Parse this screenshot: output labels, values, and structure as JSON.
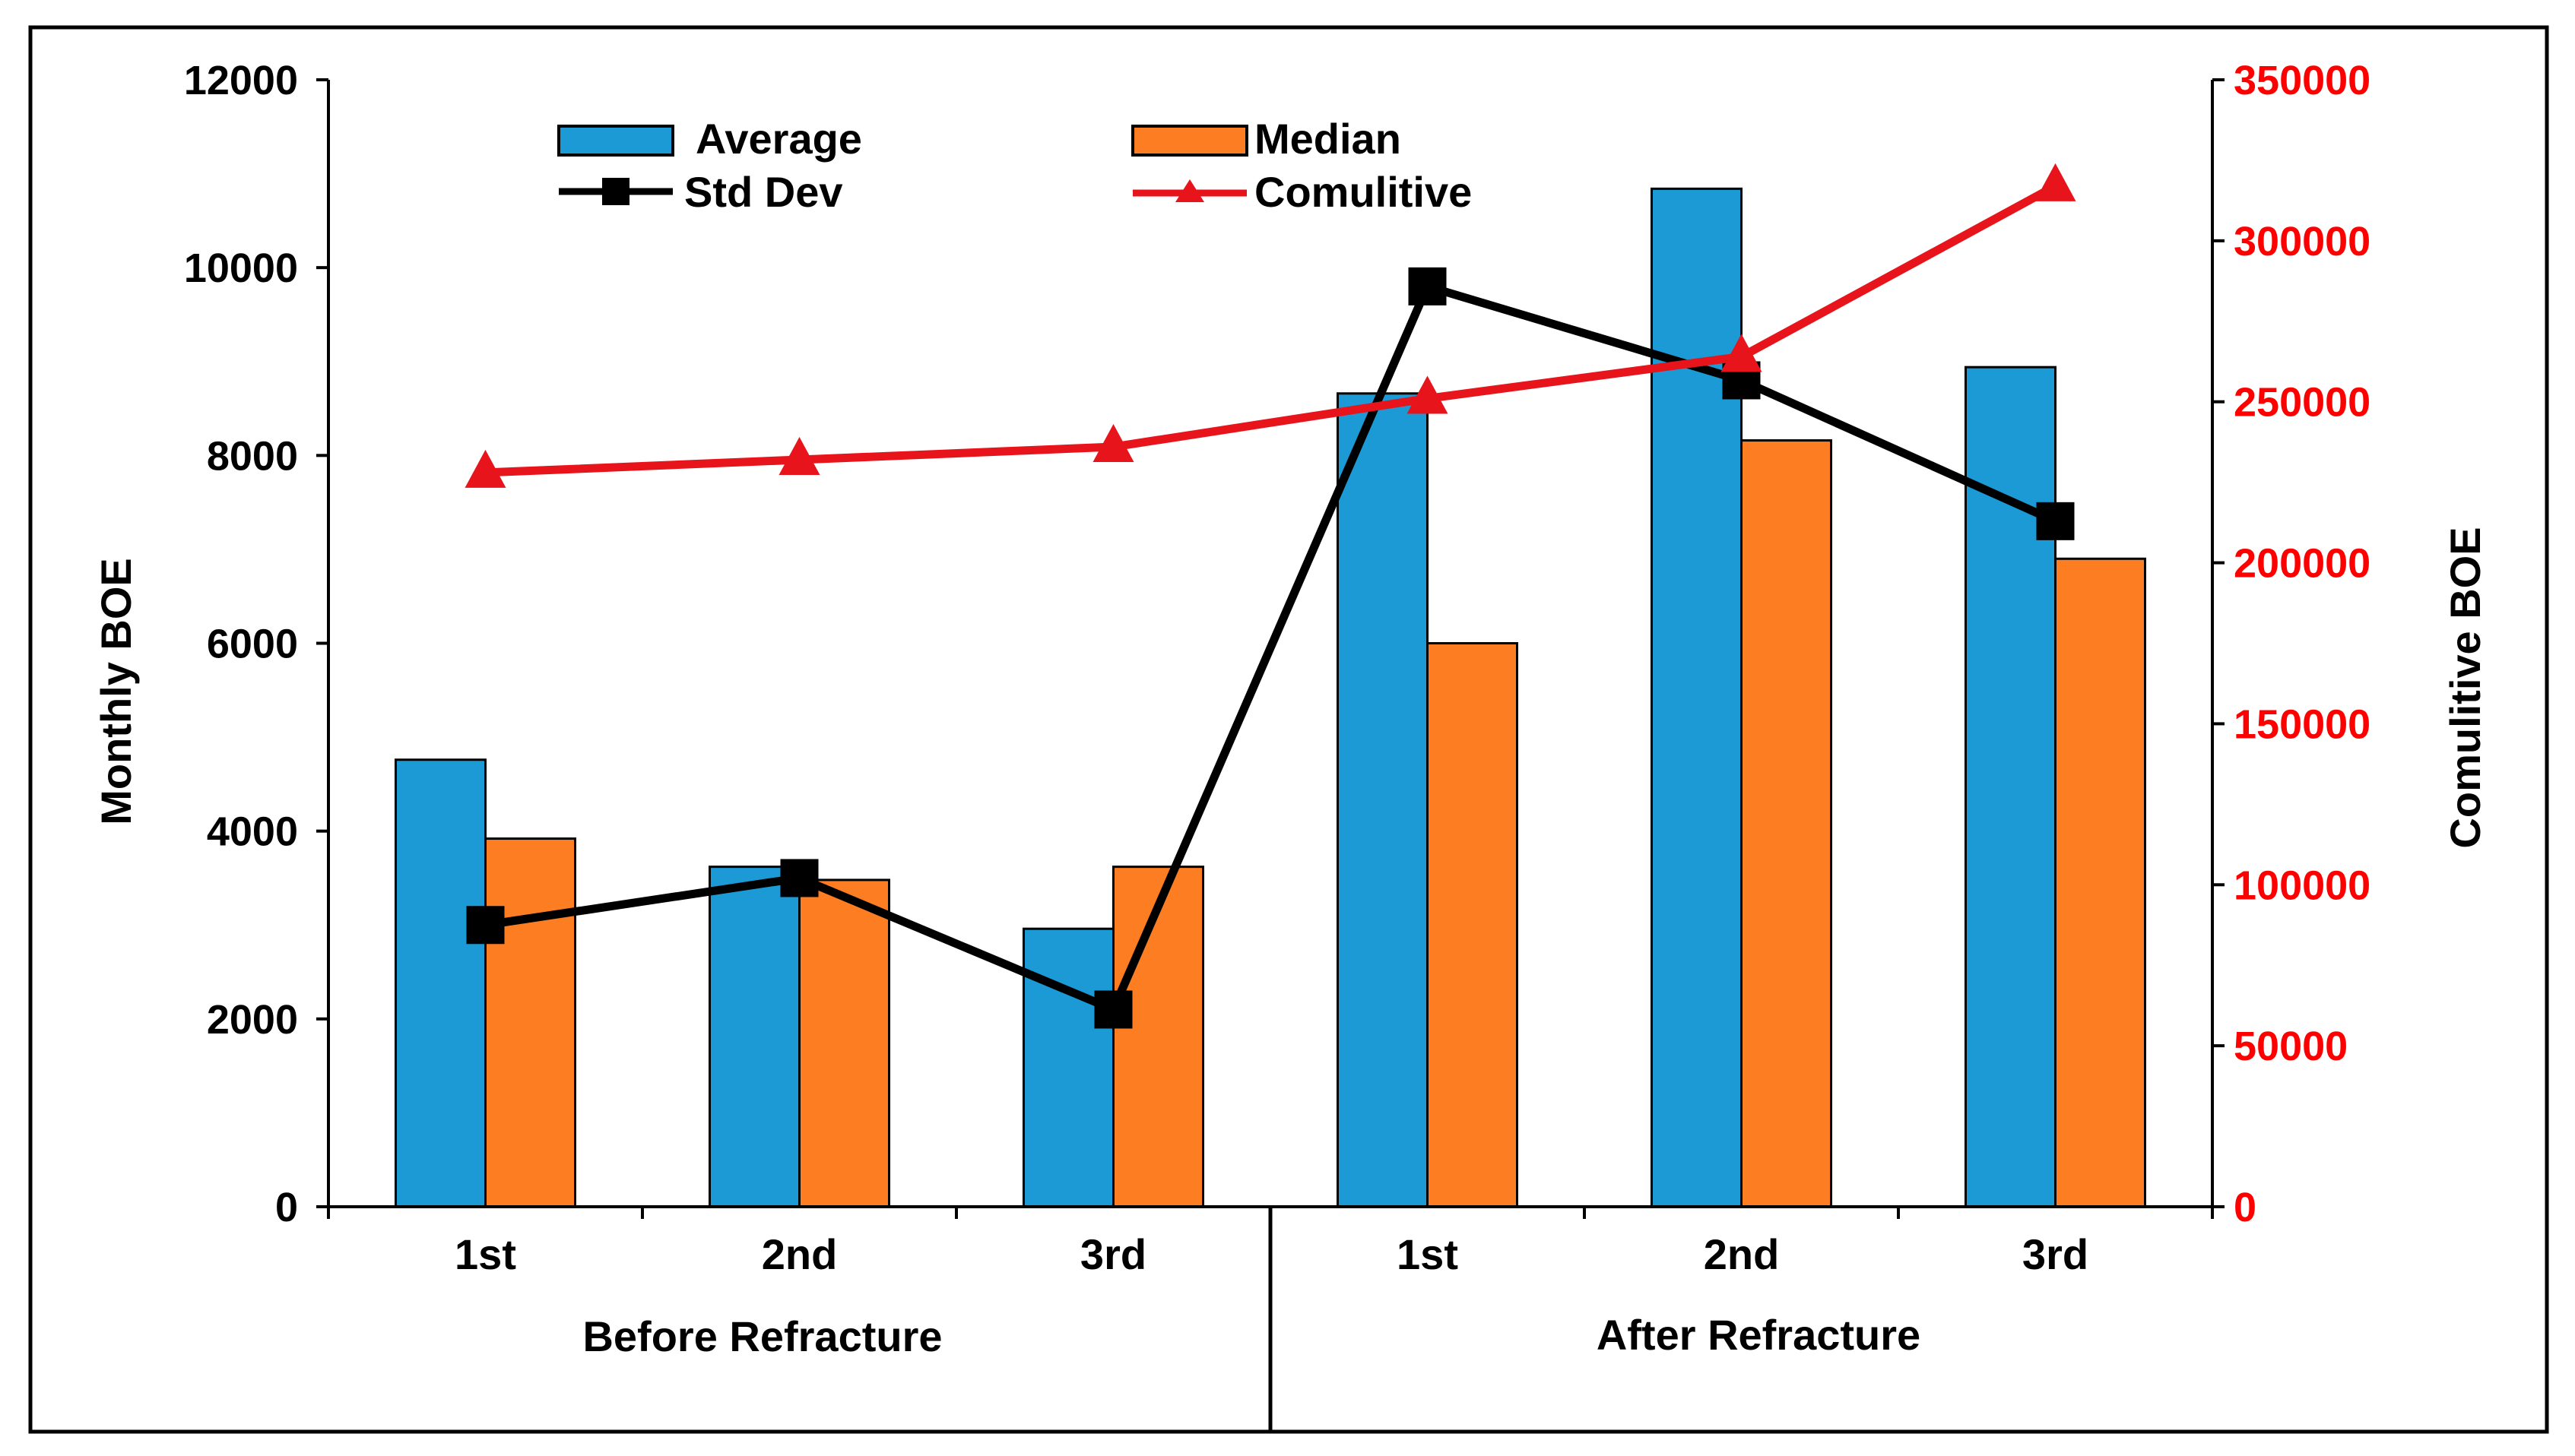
{
  "chart_data": {
    "type": "bar",
    "title": "",
    "groups": [
      {
        "label": "Before Refracture",
        "categories": [
          "1st",
          "2nd",
          "3rd"
        ]
      },
      {
        "label": "After Refracture",
        "categories": [
          "1st",
          "2nd",
          "3rd"
        ]
      }
    ],
    "categories": [
      "1st",
      "2nd",
      "3rd",
      "1st",
      "2nd",
      "3rd"
    ],
    "y_left": {
      "label": "Monthly BOE",
      "ylim": [
        0,
        12000
      ],
      "ticks": [
        "0",
        "2000",
        "4000",
        "6000",
        "8000",
        "10000",
        "12000"
      ]
    },
    "y_right": {
      "label": "Comulitive BOE",
      "ylim": [
        0,
        350000
      ],
      "ticks": [
        "0",
        "50000",
        "100000",
        "150000",
        "200000",
        "250000",
        "300000",
        "350000"
      ],
      "tick_color": "#ff0000"
    },
    "series": [
      {
        "name": "Average",
        "kind": "bar",
        "axis": "left",
        "color": "#1b9ad6",
        "values": [
          4760,
          3620,
          2960,
          8660,
          10840,
          8940
        ]
      },
      {
        "name": "Median",
        "kind": "bar",
        "axis": "left",
        "color": "#fd7e22",
        "values": [
          3920,
          3480,
          3620,
          6000,
          8160,
          6900
        ]
      },
      {
        "name": "Std Dev",
        "kind": "line",
        "marker": "square",
        "axis": "left",
        "color": "#000000",
        "values": [
          3000,
          3500,
          2100,
          9800,
          8800,
          7300
        ]
      },
      {
        "name": "Comulitive",
        "kind": "line",
        "marker": "triangle",
        "axis": "right",
        "color": "#e8141b",
        "values": [
          228000,
          232000,
          236000,
          251000,
          264000,
          317000
        ]
      }
    ],
    "grid": false,
    "legend_position": "top-left"
  }
}
